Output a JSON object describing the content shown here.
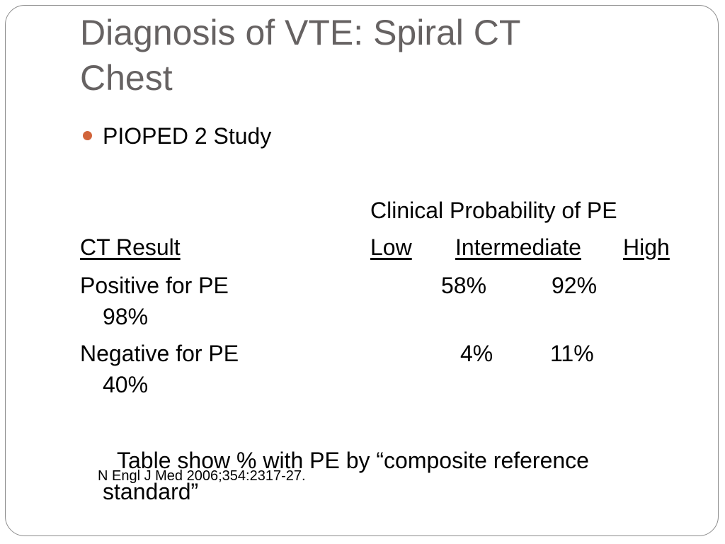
{
  "slide": {
    "title_line1": "Diagnosis of VTE: Spiral CT",
    "title_line2": "Chest",
    "bullet": "PIOPED 2 Study",
    "table": {
      "group_header": "Clinical Probability of PE",
      "row_header": "CT Result",
      "columns": [
        "Low",
        "Intermediate",
        "High"
      ],
      "rows": [
        {
          "label": "Positive for PE",
          "values": [
            "58%",
            "92%",
            "98%"
          ]
        },
        {
          "label": "Negative for PE",
          "values": [
            "4%",
            "11%",
            "40%"
          ]
        }
      ]
    },
    "note": "Table show % with PE by “composite reference standard”",
    "citation": "N Engl J Med 2006;354:2317-27."
  },
  "colors": {
    "title": "#666262",
    "bullet": "#d1643a",
    "frame": "#8c8c8c"
  }
}
